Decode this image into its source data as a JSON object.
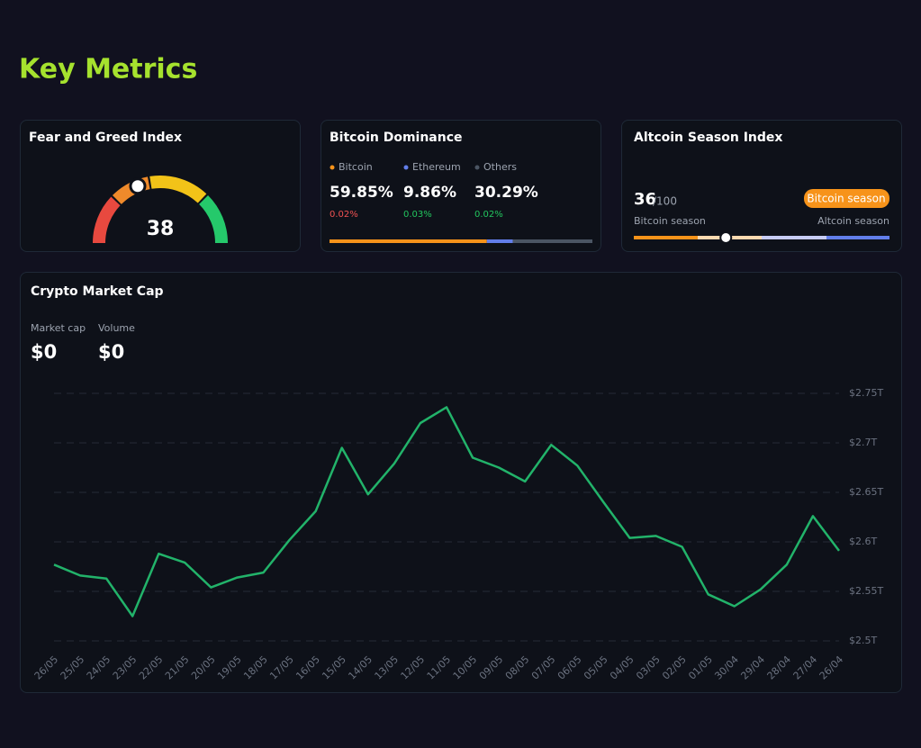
{
  "header": {
    "title": "Key Metrics"
  },
  "fear_greed": {
    "title": "Fear and Greed Index",
    "value": 38,
    "range": [
      0,
      100
    ]
  },
  "dominance": {
    "title": "Bitcoin Dominance",
    "items": [
      {
        "name": "Bitcoin",
        "value": 59.85,
        "value_label": "59.85%",
        "change": 0.02,
        "change_label": "0.02%",
        "color": "#f7931a",
        "change_color": "#f05252"
      },
      {
        "name": "Ethereum",
        "value": 9.86,
        "value_label": "9.86%",
        "change": 0.03,
        "change_label": "0.03%",
        "color": "#627eea",
        "change_color": "#22c55e"
      },
      {
        "name": "Others",
        "value": 30.29,
        "value_label": "30.29%",
        "change": 0.02,
        "change_label": "0.02%",
        "color": "#4b5563",
        "change_color": "#22c55e"
      }
    ]
  },
  "altcoin_season": {
    "title": "Altcoin Season Index",
    "value": 36,
    "max_label": "/100",
    "range": [
      0,
      100
    ],
    "badge": "Bitcoin season",
    "left_label": "Bitcoin season",
    "right_label": "Altcoin season"
  },
  "market_cap": {
    "title": "Crypto Market Cap",
    "stats": [
      {
        "label": "Market cap",
        "value": 0,
        "value_label": "$0"
      },
      {
        "label": "Volume",
        "value": 0,
        "value_label": "$0"
      }
    ]
  },
  "chart_data": {
    "type": "line",
    "color": "#22b36a",
    "grid": true,
    "categories": [
      "26/05",
      "25/05",
      "24/05",
      "23/05",
      "22/05",
      "21/05",
      "20/05",
      "19/05",
      "18/05",
      "17/05",
      "16/05",
      "15/05",
      "14/05",
      "13/05",
      "12/05",
      "11/05",
      "10/05",
      "09/05",
      "08/05",
      "07/05",
      "06/05",
      "05/05",
      "04/05",
      "03/05",
      "02/05",
      "01/05",
      "30/04",
      "29/04",
      "28/04",
      "27/04",
      "26/04"
    ],
    "values": [
      2.577,
      2.566,
      2.563,
      2.525,
      2.588,
      2.579,
      2.554,
      2.564,
      2.569,
      2.602,
      2.631,
      2.695,
      2.648,
      2.679,
      2.72,
      2.736,
      2.685,
      2.675,
      2.661,
      2.698,
      2.677,
      2.64,
      2.604,
      2.606,
      2.595,
      2.547,
      2.535,
      2.552,
      2.577,
      2.626,
      2.591
    ],
    "ylim": [
      2.5,
      2.75
    ],
    "yticks": [
      {
        "value": 2.5,
        "label": "$2.5T"
      },
      {
        "value": 2.55,
        "label": "$2.55T"
      },
      {
        "value": 2.6,
        "label": "$2.6T"
      },
      {
        "value": 2.65,
        "label": "$2.65T"
      },
      {
        "value": 2.7,
        "label": "$2.7T"
      },
      {
        "value": 2.75,
        "label": "$2.75T"
      }
    ]
  }
}
